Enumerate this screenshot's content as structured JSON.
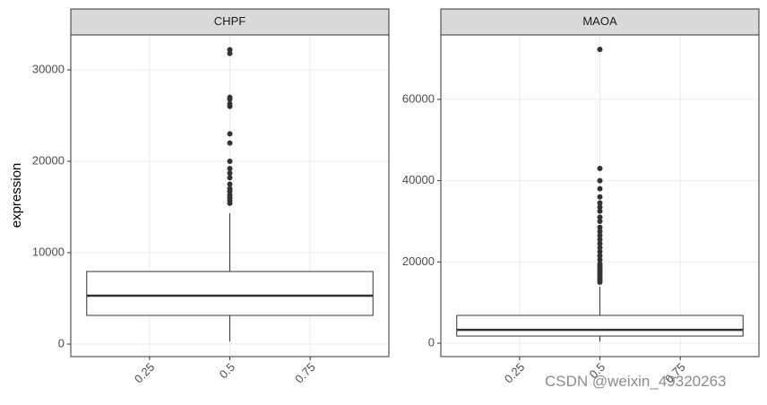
{
  "chart_data": [
    {
      "type": "box",
      "title": "CHPF",
      "ylabel": "expression",
      "x": 0.5,
      "q1": 3140,
      "median": 5290,
      "q3": 7940,
      "whisker_low": 300,
      "whisker_high": 14300,
      "outliers": [
        15400,
        15700,
        16000,
        16300,
        16700,
        17000,
        17500,
        18200,
        18700,
        19200,
        20000,
        22000,
        23000,
        26000,
        26300,
        26800,
        27000,
        31800,
        32200
      ],
      "xlim": [
        0.005,
        0.995
      ],
      "xticks": [
        0.25,
        0.5,
        0.75
      ],
      "ylim": [
        -1370,
        33820
      ],
      "yticks": [
        0,
        10000,
        20000,
        30000
      ],
      "grid": true,
      "color": "#333333"
    },
    {
      "type": "box",
      "title": "MAOA",
      "x": 0.5,
      "q1": 1760,
      "median": 3300,
      "q3": 6840,
      "whisker_low": 400,
      "whisker_high": 13900,
      "outliers": [
        15000,
        15500,
        16000,
        16500,
        17000,
        17500,
        18000,
        18500,
        19000,
        19500,
        20500,
        21500,
        22500,
        23500,
        24500,
        25500,
        26500,
        27500,
        28500,
        30000,
        31000,
        32500,
        33500,
        34500,
        36000,
        38000,
        40000,
        43000,
        72300
      ],
      "xlim": [
        0.005,
        0.995
      ],
      "xticks": [
        0.25,
        0.5,
        0.75
      ],
      "ylim": [
        -3300,
        75850
      ],
      "yticks": [
        0,
        20000,
        40000,
        60000
      ],
      "grid": true,
      "color": "#333333"
    }
  ],
  "watermark": "CSDN @weixin_49320263"
}
